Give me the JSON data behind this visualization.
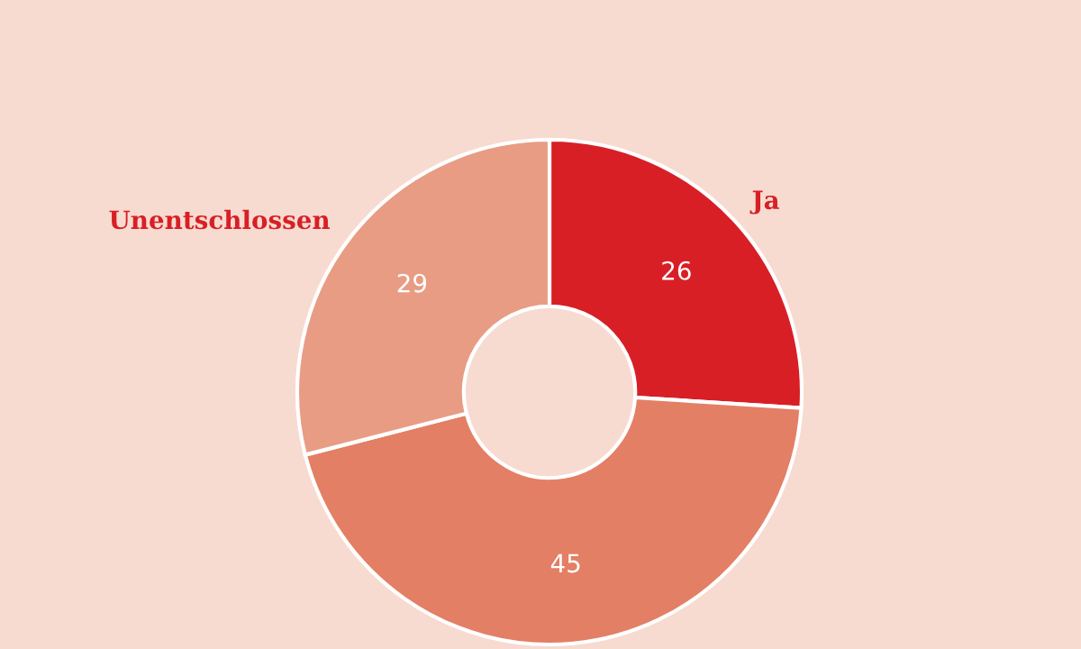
{
  "chart_data": {
    "type": "donut",
    "categories": [
      "Ja",
      null,
      "Unentschlossen"
    ],
    "values": [
      26,
      45,
      29
    ],
    "colors": [
      "#d81f26",
      "#e37f65",
      "#e89c84"
    ],
    "data_labels": true,
    "legend": false
  }
}
